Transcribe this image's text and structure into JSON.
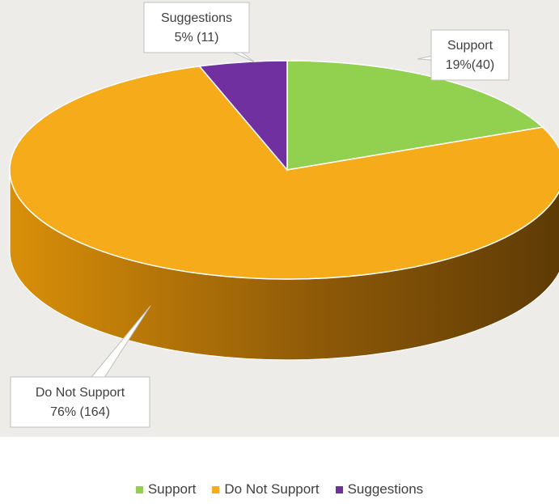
{
  "chart_data": {
    "type": "pie",
    "title": "",
    "three_d": true,
    "categories": [
      "Support",
      "Do Not Support",
      "Suggestions"
    ],
    "values": [
      40,
      164,
      11
    ],
    "percent_labels": [
      "19%(40)",
      "76% (164)",
      "5% (11)"
    ],
    "colors": [
      "#92d050",
      "#f5ab1a",
      "#7030a0"
    ],
    "legend_position": "bottom"
  }
}
